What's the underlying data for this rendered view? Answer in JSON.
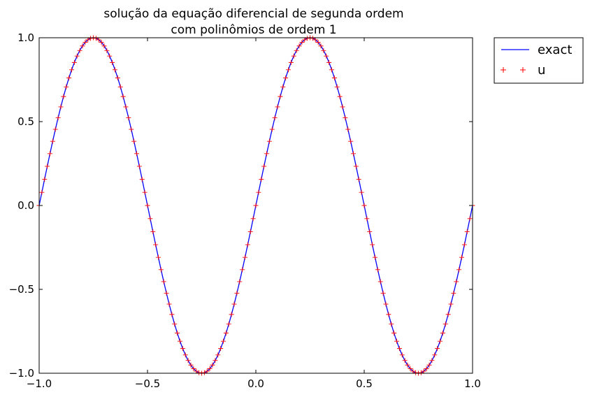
{
  "chart_data": {
    "type": "line",
    "title_lines": [
      "solução da equação diferencial de segunda ordem",
      "com polinômios de ordem 1"
    ],
    "xlabel": "",
    "ylabel": "",
    "xlim": [
      -1.0,
      1.0
    ],
    "ylim": [
      -1.0,
      1.0
    ],
    "xticks": [
      -1.0,
      -0.5,
      0.0,
      0.5,
      1.0
    ],
    "xtick_labels": [
      "−1.0",
      "−0.5",
      "0.0",
      "0.5",
      "1.0"
    ],
    "yticks": [
      -1.0,
      -0.5,
      0.0,
      0.5,
      1.0
    ],
    "ytick_labels": [
      "−1.0",
      "−0.5",
      "0.0",
      "0.5",
      "1.0"
    ],
    "grid": false,
    "legend_position": "outside-top-right",
    "series": [
      {
        "name": "exact",
        "style": "line",
        "color": "#0000ff",
        "function": "sin(2*pi*x)",
        "domain": [
          -1.0,
          1.0
        ]
      },
      {
        "name": "u",
        "style": "plus-markers",
        "color": "#ff0000",
        "function": "sin(2*pi*x)",
        "domain": [
          -1.0,
          1.0
        ],
        "num_points": 161
      }
    ]
  }
}
